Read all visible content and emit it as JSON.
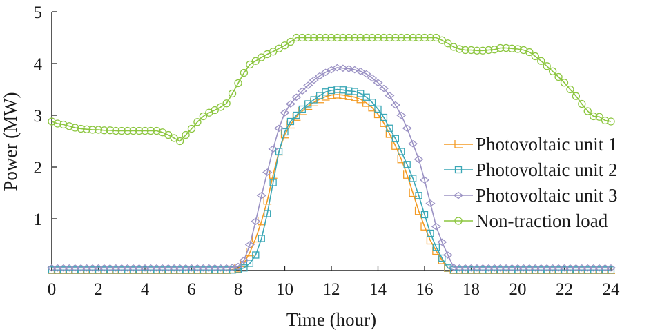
{
  "chart_data": {
    "type": "line",
    "title": "",
    "xlabel": "Time (hour)",
    "ylabel": "Power (MW)",
    "xlim": [
      0,
      24
    ],
    "ylim": [
      0,
      5
    ],
    "xticks": [
      0,
      2,
      4,
      6,
      8,
      10,
      12,
      14,
      16,
      18,
      20,
      22,
      24
    ],
    "yticks": [
      1,
      2,
      3,
      4,
      5
    ],
    "grid": false,
    "legend_position": "center-right",
    "series": [
      {
        "name": "Photovoltaic unit 1",
        "color": "#f39a22",
        "marker": "tri-right",
        "x": [
          0,
          0.25,
          0.5,
          0.75,
          1,
          1.25,
          1.5,
          1.75,
          2,
          2.25,
          2.5,
          2.75,
          3,
          3.25,
          3.5,
          3.75,
          4,
          4.25,
          4.5,
          4.75,
          5,
          5.25,
          5.5,
          5.75,
          6,
          6.25,
          6.5,
          6.75,
          7,
          7.25,
          7.5,
          7.75,
          8,
          8.25,
          8.5,
          8.75,
          9,
          9.25,
          9.5,
          9.75,
          10,
          10.25,
          10.5,
          10.75,
          11,
          11.25,
          11.5,
          11.75,
          12,
          12.25,
          12.5,
          12.75,
          13,
          13.25,
          13.5,
          13.75,
          14,
          14.25,
          14.5,
          14.75,
          15,
          15.25,
          15.5,
          15.75,
          16,
          16.25,
          16.5,
          16.75,
          17,
          17.25,
          17.5,
          17.75,
          18,
          18.25,
          18.5,
          18.75,
          19,
          19.25,
          19.5,
          19.75,
          20,
          20.25,
          20.5,
          20.75,
          21,
          21.25,
          21.5,
          21.75,
          22,
          22.25,
          22.5,
          22.75,
          23,
          23.25,
          23.5,
          23.75,
          24
        ],
        "y": [
          0.01,
          0.01,
          0.01,
          0.01,
          0.01,
          0.01,
          0.01,
          0.01,
          0.01,
          0.01,
          0.01,
          0.01,
          0.01,
          0.01,
          0.01,
          0.01,
          0.01,
          0.01,
          0.01,
          0.01,
          0.01,
          0.01,
          0.01,
          0.01,
          0.01,
          0.01,
          0.01,
          0.01,
          0.01,
          0.01,
          0.01,
          0.02,
          0.04,
          0.14,
          0.35,
          0.62,
          0.95,
          1.35,
          1.85,
          2.3,
          2.63,
          2.82,
          2.97,
          3.08,
          3.18,
          3.25,
          3.31,
          3.36,
          3.39,
          3.4,
          3.39,
          3.37,
          3.35,
          3.31,
          3.24,
          3.15,
          3.02,
          2.85,
          2.64,
          2.41,
          2.15,
          1.85,
          1.5,
          1.15,
          0.85,
          0.58,
          0.38,
          0.2,
          0.05,
          0.01,
          0.01,
          0.01,
          0.01,
          0.01,
          0.01,
          0.01,
          0.01,
          0.01,
          0.01,
          0.01,
          0.01,
          0.01,
          0.01,
          0.01,
          0.01,
          0.01,
          0.01,
          0.01,
          0.01,
          0.01,
          0.01,
          0.01,
          0.01,
          0.01,
          0.01,
          0.01,
          0.01
        ]
      },
      {
        "name": "Photovoltaic unit 2",
        "color": "#3aa7b6",
        "marker": "square",
        "x": [
          0,
          0.25,
          0.5,
          0.75,
          1,
          1.25,
          1.5,
          1.75,
          2,
          2.25,
          2.5,
          2.75,
          3,
          3.25,
          3.5,
          3.75,
          4,
          4.25,
          4.5,
          4.75,
          5,
          5.25,
          5.5,
          5.75,
          6,
          6.25,
          6.5,
          6.75,
          7,
          7.25,
          7.5,
          7.75,
          8,
          8.25,
          8.5,
          8.75,
          9,
          9.25,
          9.5,
          9.75,
          10,
          10.25,
          10.5,
          10.75,
          11,
          11.25,
          11.5,
          11.75,
          12,
          12.25,
          12.5,
          12.75,
          13,
          13.25,
          13.5,
          13.75,
          14,
          14.25,
          14.5,
          14.75,
          15,
          15.25,
          15.5,
          15.75,
          16,
          16.25,
          16.5,
          16.75,
          17,
          17.25,
          17.5,
          17.75,
          18,
          18.25,
          18.5,
          18.75,
          19,
          19.25,
          19.5,
          19.75,
          20,
          20.25,
          20.5,
          20.75,
          21,
          21.25,
          21.5,
          21.75,
          22,
          22.25,
          22.5,
          22.75,
          23,
          23.25,
          23.5,
          23.75,
          24
        ],
        "y": [
          0.01,
          0.01,
          0.01,
          0.01,
          0.01,
          0.01,
          0.01,
          0.01,
          0.01,
          0.01,
          0.01,
          0.01,
          0.01,
          0.01,
          0.01,
          0.01,
          0.01,
          0.01,
          0.01,
          0.01,
          0.01,
          0.01,
          0.01,
          0.01,
          0.01,
          0.01,
          0.01,
          0.01,
          0.01,
          0.01,
          0.01,
          0.01,
          0.02,
          0.05,
          0.14,
          0.3,
          0.62,
          1.1,
          1.7,
          2.3,
          2.68,
          2.88,
          3.0,
          3.12,
          3.22,
          3.3,
          3.38,
          3.45,
          3.48,
          3.5,
          3.49,
          3.47,
          3.46,
          3.42,
          3.35,
          3.25,
          3.12,
          2.96,
          2.75,
          2.55,
          2.3,
          2.05,
          1.78,
          1.45,
          1.08,
          0.72,
          0.45,
          0.24,
          0.05,
          0.01,
          0.01,
          0.01,
          0.01,
          0.01,
          0.01,
          0.01,
          0.01,
          0.01,
          0.01,
          0.01,
          0.01,
          0.01,
          0.01,
          0.01,
          0.01,
          0.01,
          0.01,
          0.01,
          0.01,
          0.01,
          0.01,
          0.01,
          0.01,
          0.01,
          0.01,
          0.01,
          0.01
        ]
      },
      {
        "name": "Photovoltaic unit 3",
        "color": "#9b92c4",
        "marker": "diamond",
        "x": [
          0,
          0.25,
          0.5,
          0.75,
          1,
          1.25,
          1.5,
          1.75,
          2,
          2.25,
          2.5,
          2.75,
          3,
          3.25,
          3.5,
          3.75,
          4,
          4.25,
          4.5,
          4.75,
          5,
          5.25,
          5.5,
          5.75,
          6,
          6.25,
          6.5,
          6.75,
          7,
          7.25,
          7.5,
          7.75,
          8,
          8.25,
          8.5,
          8.75,
          9,
          9.25,
          9.5,
          9.75,
          10,
          10.25,
          10.5,
          10.75,
          11,
          11.25,
          11.5,
          11.75,
          12,
          12.25,
          12.5,
          12.75,
          13,
          13.25,
          13.5,
          13.75,
          14,
          14.25,
          14.5,
          14.75,
          15,
          15.25,
          15.5,
          15.75,
          16,
          16.25,
          16.5,
          16.75,
          17,
          17.25,
          17.5,
          17.75,
          18,
          18.25,
          18.5,
          18.75,
          19,
          19.25,
          19.5,
          19.75,
          20,
          20.25,
          20.5,
          20.75,
          21,
          21.25,
          21.5,
          21.75,
          22,
          22.25,
          22.5,
          22.75,
          23,
          23.25,
          23.5,
          23.75,
          24
        ],
        "y": [
          0.05,
          0.05,
          0.05,
          0.05,
          0.05,
          0.05,
          0.05,
          0.05,
          0.05,
          0.05,
          0.05,
          0.05,
          0.05,
          0.05,
          0.05,
          0.05,
          0.05,
          0.05,
          0.05,
          0.05,
          0.05,
          0.05,
          0.05,
          0.05,
          0.05,
          0.05,
          0.05,
          0.05,
          0.05,
          0.05,
          0.05,
          0.06,
          0.08,
          0.2,
          0.5,
          0.95,
          1.45,
          1.9,
          2.35,
          2.75,
          3.05,
          3.22,
          3.35,
          3.47,
          3.58,
          3.68,
          3.76,
          3.83,
          3.88,
          3.92,
          3.91,
          3.9,
          3.88,
          3.85,
          3.8,
          3.72,
          3.63,
          3.52,
          3.38,
          3.2,
          3.0,
          2.75,
          2.45,
          2.15,
          1.75,
          1.3,
          0.85,
          0.55,
          0.3,
          0.06,
          0.05,
          0.05,
          0.05,
          0.05,
          0.05,
          0.05,
          0.05,
          0.05,
          0.05,
          0.05,
          0.05,
          0.05,
          0.05,
          0.05,
          0.05,
          0.05,
          0.05,
          0.05,
          0.05,
          0.05,
          0.05,
          0.05,
          0.05,
          0.05,
          0.05,
          0.05,
          0.05
        ]
      },
      {
        "name": "Non-traction load",
        "color": "#8cc63f",
        "marker": "circle",
        "x": [
          0,
          0.25,
          0.5,
          0.75,
          1,
          1.25,
          1.5,
          1.75,
          2,
          2.25,
          2.5,
          2.75,
          3,
          3.25,
          3.5,
          3.75,
          4,
          4.25,
          4.5,
          4.75,
          5,
          5.25,
          5.5,
          5.75,
          6,
          6.25,
          6.5,
          6.75,
          7,
          7.25,
          7.5,
          7.75,
          8,
          8.25,
          8.5,
          8.75,
          9,
          9.25,
          9.5,
          9.75,
          10,
          10.25,
          10.5,
          10.75,
          11,
          11.25,
          11.5,
          11.75,
          12,
          12.25,
          12.5,
          12.75,
          13,
          13.25,
          13.5,
          13.75,
          14,
          14.25,
          14.5,
          14.75,
          15,
          15.25,
          15.5,
          15.75,
          16,
          16.25,
          16.5,
          16.75,
          17,
          17.25,
          17.5,
          17.75,
          18,
          18.25,
          18.5,
          18.75,
          19,
          19.25,
          19.5,
          19.75,
          20,
          20.25,
          20.5,
          20.75,
          21,
          21.25,
          21.5,
          21.75,
          22,
          22.25,
          22.5,
          22.75,
          23,
          23.25,
          23.5,
          23.75,
          24
        ],
        "y": [
          2.88,
          2.84,
          2.82,
          2.79,
          2.76,
          2.74,
          2.73,
          2.72,
          2.72,
          2.71,
          2.71,
          2.7,
          2.7,
          2.7,
          2.7,
          2.7,
          2.7,
          2.7,
          2.7,
          2.67,
          2.62,
          2.56,
          2.5,
          2.62,
          2.74,
          2.87,
          2.98,
          3.05,
          3.1,
          3.16,
          3.23,
          3.42,
          3.62,
          3.82,
          3.98,
          4.05,
          4.12,
          4.18,
          4.23,
          4.29,
          4.35,
          4.42,
          4.5,
          4.5,
          4.5,
          4.5,
          4.5,
          4.5,
          4.5,
          4.5,
          4.5,
          4.5,
          4.5,
          4.5,
          4.5,
          4.5,
          4.5,
          4.5,
          4.5,
          4.5,
          4.5,
          4.5,
          4.5,
          4.5,
          4.5,
          4.5,
          4.5,
          4.45,
          4.39,
          4.32,
          4.28,
          4.26,
          4.26,
          4.25,
          4.25,
          4.26,
          4.27,
          4.3,
          4.3,
          4.29,
          4.28,
          4.26,
          4.22,
          4.14,
          4.05,
          3.95,
          3.85,
          3.74,
          3.63,
          3.5,
          3.37,
          3.22,
          3.08,
          2.98,
          2.97,
          2.9,
          2.88
        ]
      }
    ]
  }
}
